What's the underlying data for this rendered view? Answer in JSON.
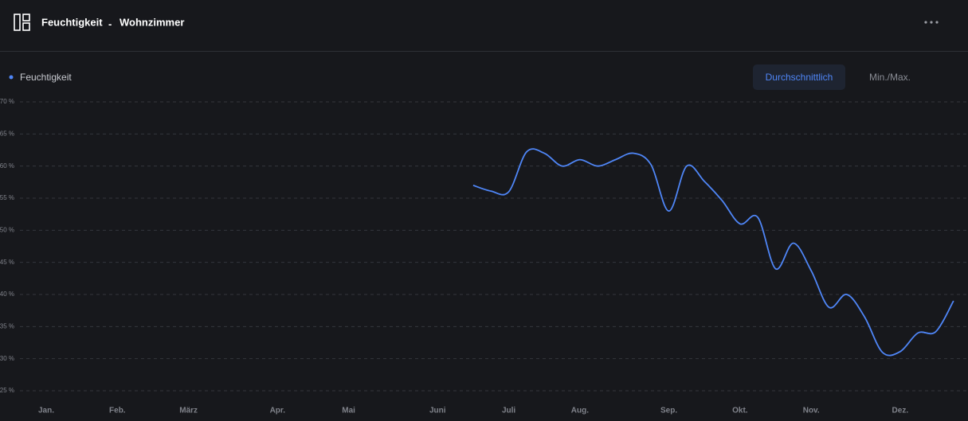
{
  "header": {
    "title": "Feuchtigkeit",
    "separator": "-",
    "subtitle": "Wohnzimmer"
  },
  "buttons": [
    "Durchschnittlich",
    "Min./Max."
  ],
  "chart_data": {
    "type": "line",
    "categories": [
      "Jan.",
      null,
      null,
      null,
      "Feb.",
      null,
      null,
      null,
      "März",
      null,
      null,
      null,
      null,
      "Apr.",
      null,
      null,
      null,
      "Mai",
      null,
      null,
      null,
      null,
      "Juni",
      null,
      null,
      null,
      "Juli",
      null,
      null,
      null,
      "Aug.",
      null,
      null,
      null,
      null,
      "Sep.",
      null,
      null,
      null,
      "Okt.",
      null,
      null,
      null,
      "Nov.",
      null,
      null,
      null,
      null,
      "Dez.",
      null,
      null,
      null
    ],
    "series": [
      {
        "name": "Feuchtigkeit",
        "color": "#4f86f7",
        "values": [
          null,
          null,
          null,
          null,
          null,
          null,
          null,
          null,
          null,
          null,
          null,
          null,
          null,
          null,
          null,
          null,
          null,
          null,
          null,
          null,
          null,
          null,
          null,
          null,
          57,
          56.1,
          56,
          62.2,
          62,
          60,
          61,
          60,
          61,
          62,
          60.2,
          53,
          60,
          57.6,
          54.6,
          51,
          52,
          44,
          48,
          43.7,
          38,
          40,
          36.5,
          31,
          31.1,
          34,
          34.2,
          39
        ]
      }
    ],
    "ylim": [
      25,
      70
    ],
    "yticks": [
      {
        "value": 25,
        "label": "25 %"
      },
      {
        "value": 30,
        "label": "30 %"
      },
      {
        "value": 35,
        "label": "35 %"
      },
      {
        "value": 40,
        "label": "40 %"
      },
      {
        "value": 45,
        "label": "45 %"
      },
      {
        "value": 50,
        "label": "50 %"
      },
      {
        "value": 55,
        "label": "55 %"
      },
      {
        "value": 60,
        "label": "60 %"
      },
      {
        "value": 65,
        "label": "65 %"
      },
      {
        "value": 70,
        "label": "70 %"
      }
    ],
    "grid": true
  }
}
